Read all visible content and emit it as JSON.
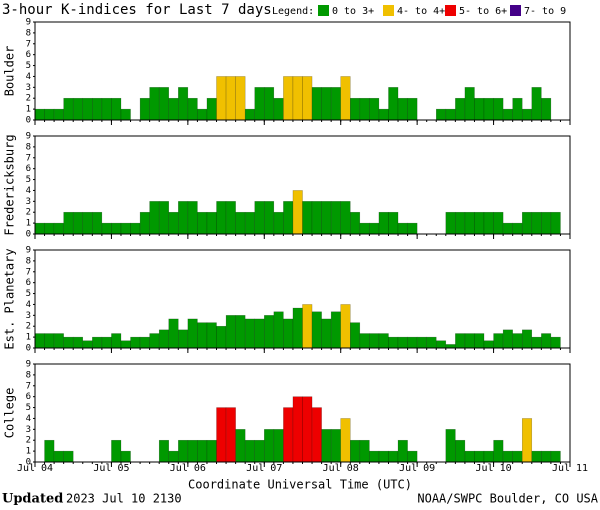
{
  "header": {
    "title": "3-hour K-indices for Last 7 days",
    "legend_title": "Legend:",
    "legend": [
      {
        "label": "0 to 3+",
        "color": "#009900",
        "from": 0
      },
      {
        "label": "4- to 4+",
        "color": "#f0c000",
        "from": 4
      },
      {
        "label": "5- to 6+",
        "color": "#ee0000",
        "from": 5
      },
      {
        "label": "7- to 9",
        "color": "#440088",
        "from": 7
      }
    ]
  },
  "chart_data": [
    {
      "type": "bar",
      "ylabel": "Boulder",
      "ylim": [
        0,
        9
      ],
      "yticks": [
        0,
        1,
        2,
        3,
        4,
        5,
        6,
        7,
        8,
        9
      ],
      "values": [
        1,
        1,
        1,
        2,
        2,
        2,
        2,
        2,
        2,
        1,
        0,
        2,
        3,
        3,
        2,
        3,
        2,
        1,
        2,
        4,
        4,
        4,
        1,
        3,
        3,
        2,
        4,
        4,
        4,
        3,
        3,
        3,
        4,
        2,
        2,
        2,
        1,
        3,
        2,
        2,
        0,
        0,
        1,
        1,
        2,
        3,
        2,
        2,
        2,
        1,
        2,
        1,
        3,
        2,
        0,
        0
      ]
    },
    {
      "type": "bar",
      "ylabel": "Fredericksburg",
      "ylim": [
        0,
        9
      ],
      "yticks": [
        0,
        1,
        2,
        3,
        4,
        5,
        6,
        7,
        8,
        9
      ],
      "values": [
        1,
        1,
        1,
        2,
        2,
        2,
        2,
        1,
        1,
        1,
        1,
        2,
        3,
        3,
        2,
        3,
        3,
        2,
        2,
        3,
        3,
        2,
        2,
        3,
        3,
        2,
        3,
        4,
        3,
        3,
        3,
        3,
        3,
        2,
        1,
        1,
        2,
        2,
        1,
        1,
        0,
        0,
        0,
        2,
        2,
        2,
        2,
        2,
        2,
        1,
        1,
        2,
        2,
        2,
        2,
        0
      ]
    },
    {
      "type": "bar",
      "ylabel": "Est. Planetary",
      "ylim": [
        0,
        9
      ],
      "yticks": [
        0,
        1,
        2,
        3,
        4,
        5,
        6,
        7,
        8,
        9
      ],
      "values": [
        1.33,
        1.33,
        1.33,
        1,
        1,
        0.67,
        1,
        1,
        1.33,
        0.67,
        1,
        1,
        1.33,
        1.67,
        2.67,
        1.67,
        2.67,
        2.33,
        2.33,
        2,
        3,
        3,
        2.67,
        2.67,
        3,
        3.33,
        2.67,
        3.67,
        4,
        3.33,
        2.67,
        3.33,
        4,
        2.33,
        1.33,
        1.33,
        1.33,
        1,
        1,
        1,
        1,
        1,
        0.67,
        0.33,
        1.33,
        1.33,
        1.33,
        0.67,
        1.33,
        1.67,
        1.33,
        1.67,
        1,
        1.33,
        1,
        0
      ]
    },
    {
      "type": "bar",
      "ylabel": "College",
      "ylim": [
        0,
        9
      ],
      "yticks": [
        0,
        1,
        2,
        3,
        4,
        5,
        6,
        7,
        8,
        9
      ],
      "values": [
        0,
        2,
        1,
        1,
        0,
        0,
        0,
        0,
        2,
        1,
        0,
        0,
        0,
        2,
        1,
        2,
        2,
        2,
        2,
        5,
        5,
        3,
        2,
        2,
        3,
        3,
        5,
        6,
        6,
        5,
        3,
        3,
        4,
        2,
        2,
        1,
        1,
        1,
        2,
        1,
        0,
        0,
        0,
        3,
        2,
        1,
        1,
        1,
        2,
        1,
        1,
        4,
        1,
        1,
        1,
        0
      ]
    }
  ],
  "x_axis": {
    "labels": [
      "Jul 04",
      "Jul 05",
      "Jul 06",
      "Jul 07",
      "Jul 08",
      "Jul 09",
      "Jul 10",
      "Jul 11"
    ],
    "title": "Coordinate Universal Time (UTC)"
  },
  "footer": {
    "updated_label": "Updated",
    "updated": "2023 Jul 10 2130",
    "credit": "NOAA/SWPC Boulder, CO USA"
  }
}
